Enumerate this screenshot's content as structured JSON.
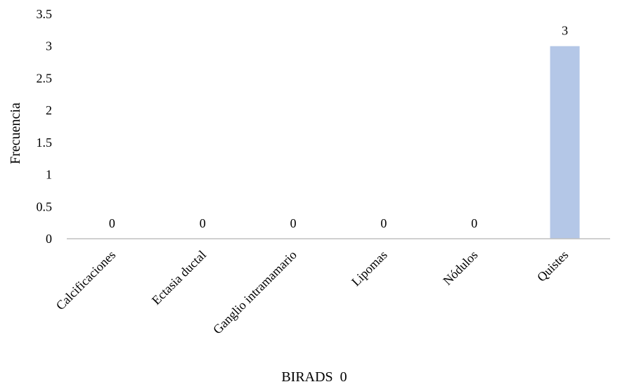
{
  "chart_data": {
    "type": "bar",
    "categories": [
      "Calcificaciones",
      "Ectasia ductal",
      "Ganglio intramamario",
      "Lipomas",
      "Nódulos",
      "Quistes"
    ],
    "values": [
      0,
      0,
      0,
      0,
      0,
      3
    ],
    "data_labels": [
      "0",
      "0",
      "0",
      "0",
      "0",
      "3"
    ],
    "xlabel": "BIRADS  0",
    "ylabel": "Frecuencia",
    "ylim": [
      0,
      3.5
    ],
    "yticks": [
      0,
      0.5,
      1,
      1.5,
      2,
      2.5,
      3,
      3.5
    ],
    "ytick_labels": [
      "0",
      "0.5",
      "1",
      "1.5",
      "2",
      "2.5",
      "3",
      "3.5"
    ],
    "bar_color": "#b4c7e7",
    "axis_color": "#bfbfbf",
    "grid": false,
    "legend": "none"
  }
}
